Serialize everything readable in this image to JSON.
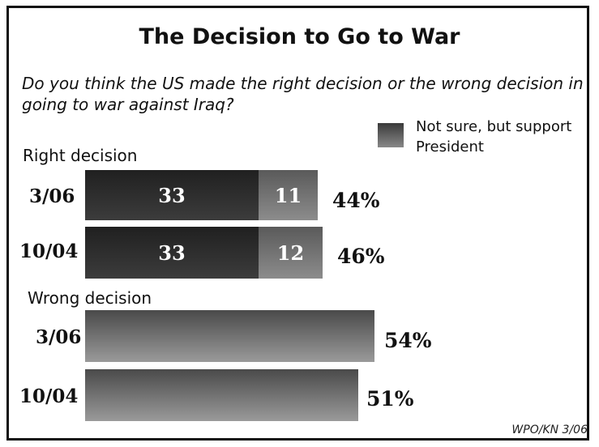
{
  "chart_data": {
    "type": "bar",
    "title": "The Decision to Go to War",
    "subtitle": "Do you think the US made the right decision or the wrong decision in going to war against Iraq?",
    "legend": [
      "Not sure, but support President"
    ],
    "groups": [
      {
        "label": "Right decision",
        "rows": [
          {
            "category": "3/06",
            "segments": [
              33,
              11
            ],
            "total": "44%"
          },
          {
            "category": "10/04",
            "segments": [
              33,
              12
            ],
            "total": "46%"
          }
        ]
      },
      {
        "label": "Wrong decision",
        "rows": [
          {
            "category": "3/06",
            "segments": [
              54
            ],
            "total": "54%"
          },
          {
            "category": "10/04",
            "segments": [
              51
            ],
            "total": "51%"
          }
        ]
      }
    ],
    "source": "WPO/KN 3/06"
  },
  "colors": {
    "dark_segment": "#2a2a2a",
    "light_segment": "#777777",
    "wrong_bar": "#6e6e6e"
  }
}
